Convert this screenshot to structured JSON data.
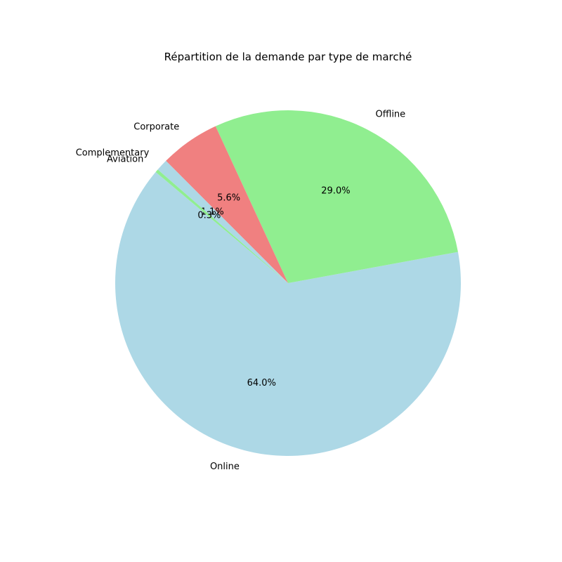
{
  "chart_data": {
    "type": "pie",
    "title": "Répartition de la demande par type de marché",
    "categories": [
      "Online",
      "Offline",
      "Corporate",
      "Complementary",
      "Aviation"
    ],
    "values": [
      64.0,
      29.0,
      5.6,
      1.1,
      0.3
    ],
    "percent_labels": [
      "64.0%",
      "29.0%",
      "5.6%",
      "1.1%",
      "0.3%"
    ],
    "colors": [
      "#add8e6",
      "#90ee90",
      "#f08080",
      "#add8e6",
      "#90ee90"
    ],
    "start_angle_deg": 140,
    "direction": "counterclockwise",
    "legend": "none"
  }
}
